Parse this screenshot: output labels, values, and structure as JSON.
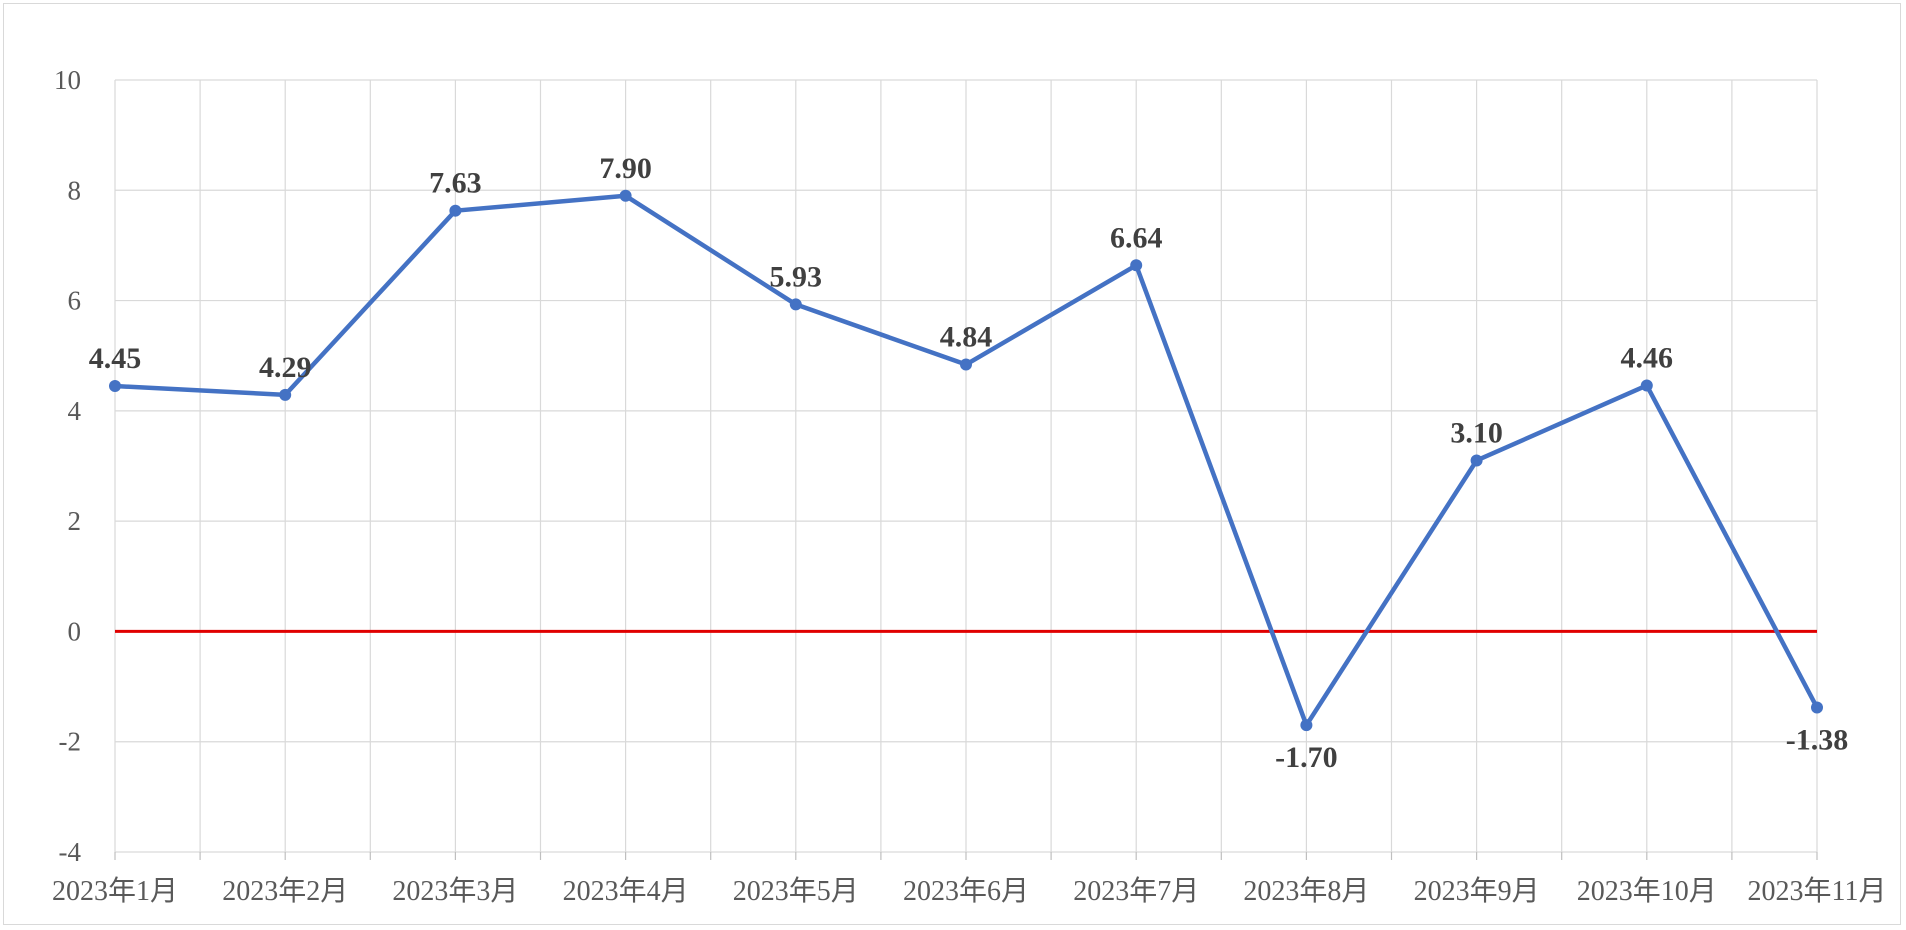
{
  "chart_data": {
    "type": "line",
    "categories": [
      "2023年1月",
      "2023年2月",
      "2023年3月",
      "2023年4月",
      "2023年5月",
      "2023年6月",
      "2023年7月",
      "2023年8月",
      "2023年9月",
      "2023年10月",
      "2023年11月"
    ],
    "series": [
      {
        "values": [
          4.45,
          4.29,
          7.63,
          7.9,
          5.93,
          4.84,
          6.64,
          -1.7,
          3.1,
          4.46,
          -1.38
        ],
        "labels": [
          "4.45",
          "4.29",
          "7.63",
          "7.90",
          "5.93",
          "4.84",
          "6.64",
          "-1.70",
          "3.10",
          "4.46",
          "-1.38"
        ],
        "color": "#4472c4"
      }
    ],
    "reference_line": {
      "value": 0,
      "color": "#e00000"
    },
    "ylim": [
      -4,
      10
    ],
    "yticks": [
      -4,
      -2,
      0,
      2,
      4,
      6,
      8,
      10
    ],
    "grid": true,
    "grid_color": "#d9d9d9",
    "title": "",
    "xlabel": "",
    "ylabel": ""
  }
}
